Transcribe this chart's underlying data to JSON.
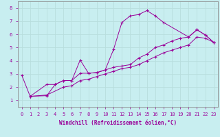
{
  "xlabel": "Windchill (Refroidissement éolien,°C)",
  "bg_color": "#c8eef0",
  "line_color": "#990099",
  "grid_color": "#aadddd",
  "xlim": [
    -0.5,
    23.5
  ],
  "ylim": [
    0.5,
    8.5
  ],
  "xticks": [
    0,
    1,
    2,
    3,
    4,
    5,
    6,
    7,
    8,
    9,
    10,
    11,
    12,
    13,
    14,
    15,
    16,
    17,
    18,
    19,
    20,
    21,
    22,
    23
  ],
  "yticks": [
    1,
    2,
    3,
    4,
    5,
    6,
    7,
    8
  ],
  "series1_x": [
    0,
    1,
    3,
    4,
    5,
    6,
    7,
    8,
    9,
    10,
    11,
    12,
    13,
    14,
    15,
    16,
    17,
    20,
    21,
    22,
    23
  ],
  "series1_y": [
    2.9,
    1.3,
    1.35,
    2.2,
    2.5,
    2.5,
    4.05,
    3.05,
    3.1,
    3.3,
    4.85,
    6.9,
    7.4,
    7.5,
    7.8,
    7.4,
    6.9,
    5.8,
    6.35,
    5.95,
    5.4
  ],
  "series2_x": [
    1,
    3,
    5,
    6,
    7,
    8,
    9,
    10,
    11,
    12,
    13,
    14,
    15,
    16,
    17,
    18,
    19,
    20,
    21,
    22,
    23
  ],
  "series2_y": [
    1.3,
    1.4,
    2.0,
    2.1,
    2.5,
    2.6,
    2.8,
    3.0,
    3.2,
    3.4,
    3.5,
    3.7,
    4.0,
    4.3,
    4.6,
    4.8,
    5.0,
    5.2,
    5.8,
    5.7,
    5.4
  ],
  "series3_x": [
    1,
    3,
    4,
    5,
    6,
    7,
    8,
    9,
    10,
    11,
    12,
    13,
    14,
    15,
    16,
    17,
    18,
    19,
    20,
    21,
    22,
    23
  ],
  "series3_y": [
    1.3,
    2.2,
    2.2,
    2.5,
    2.5,
    3.05,
    3.05,
    3.1,
    3.3,
    3.5,
    3.6,
    3.7,
    4.2,
    4.5,
    5.0,
    5.2,
    5.5,
    5.7,
    5.8,
    6.35,
    5.95,
    5.4
  ]
}
